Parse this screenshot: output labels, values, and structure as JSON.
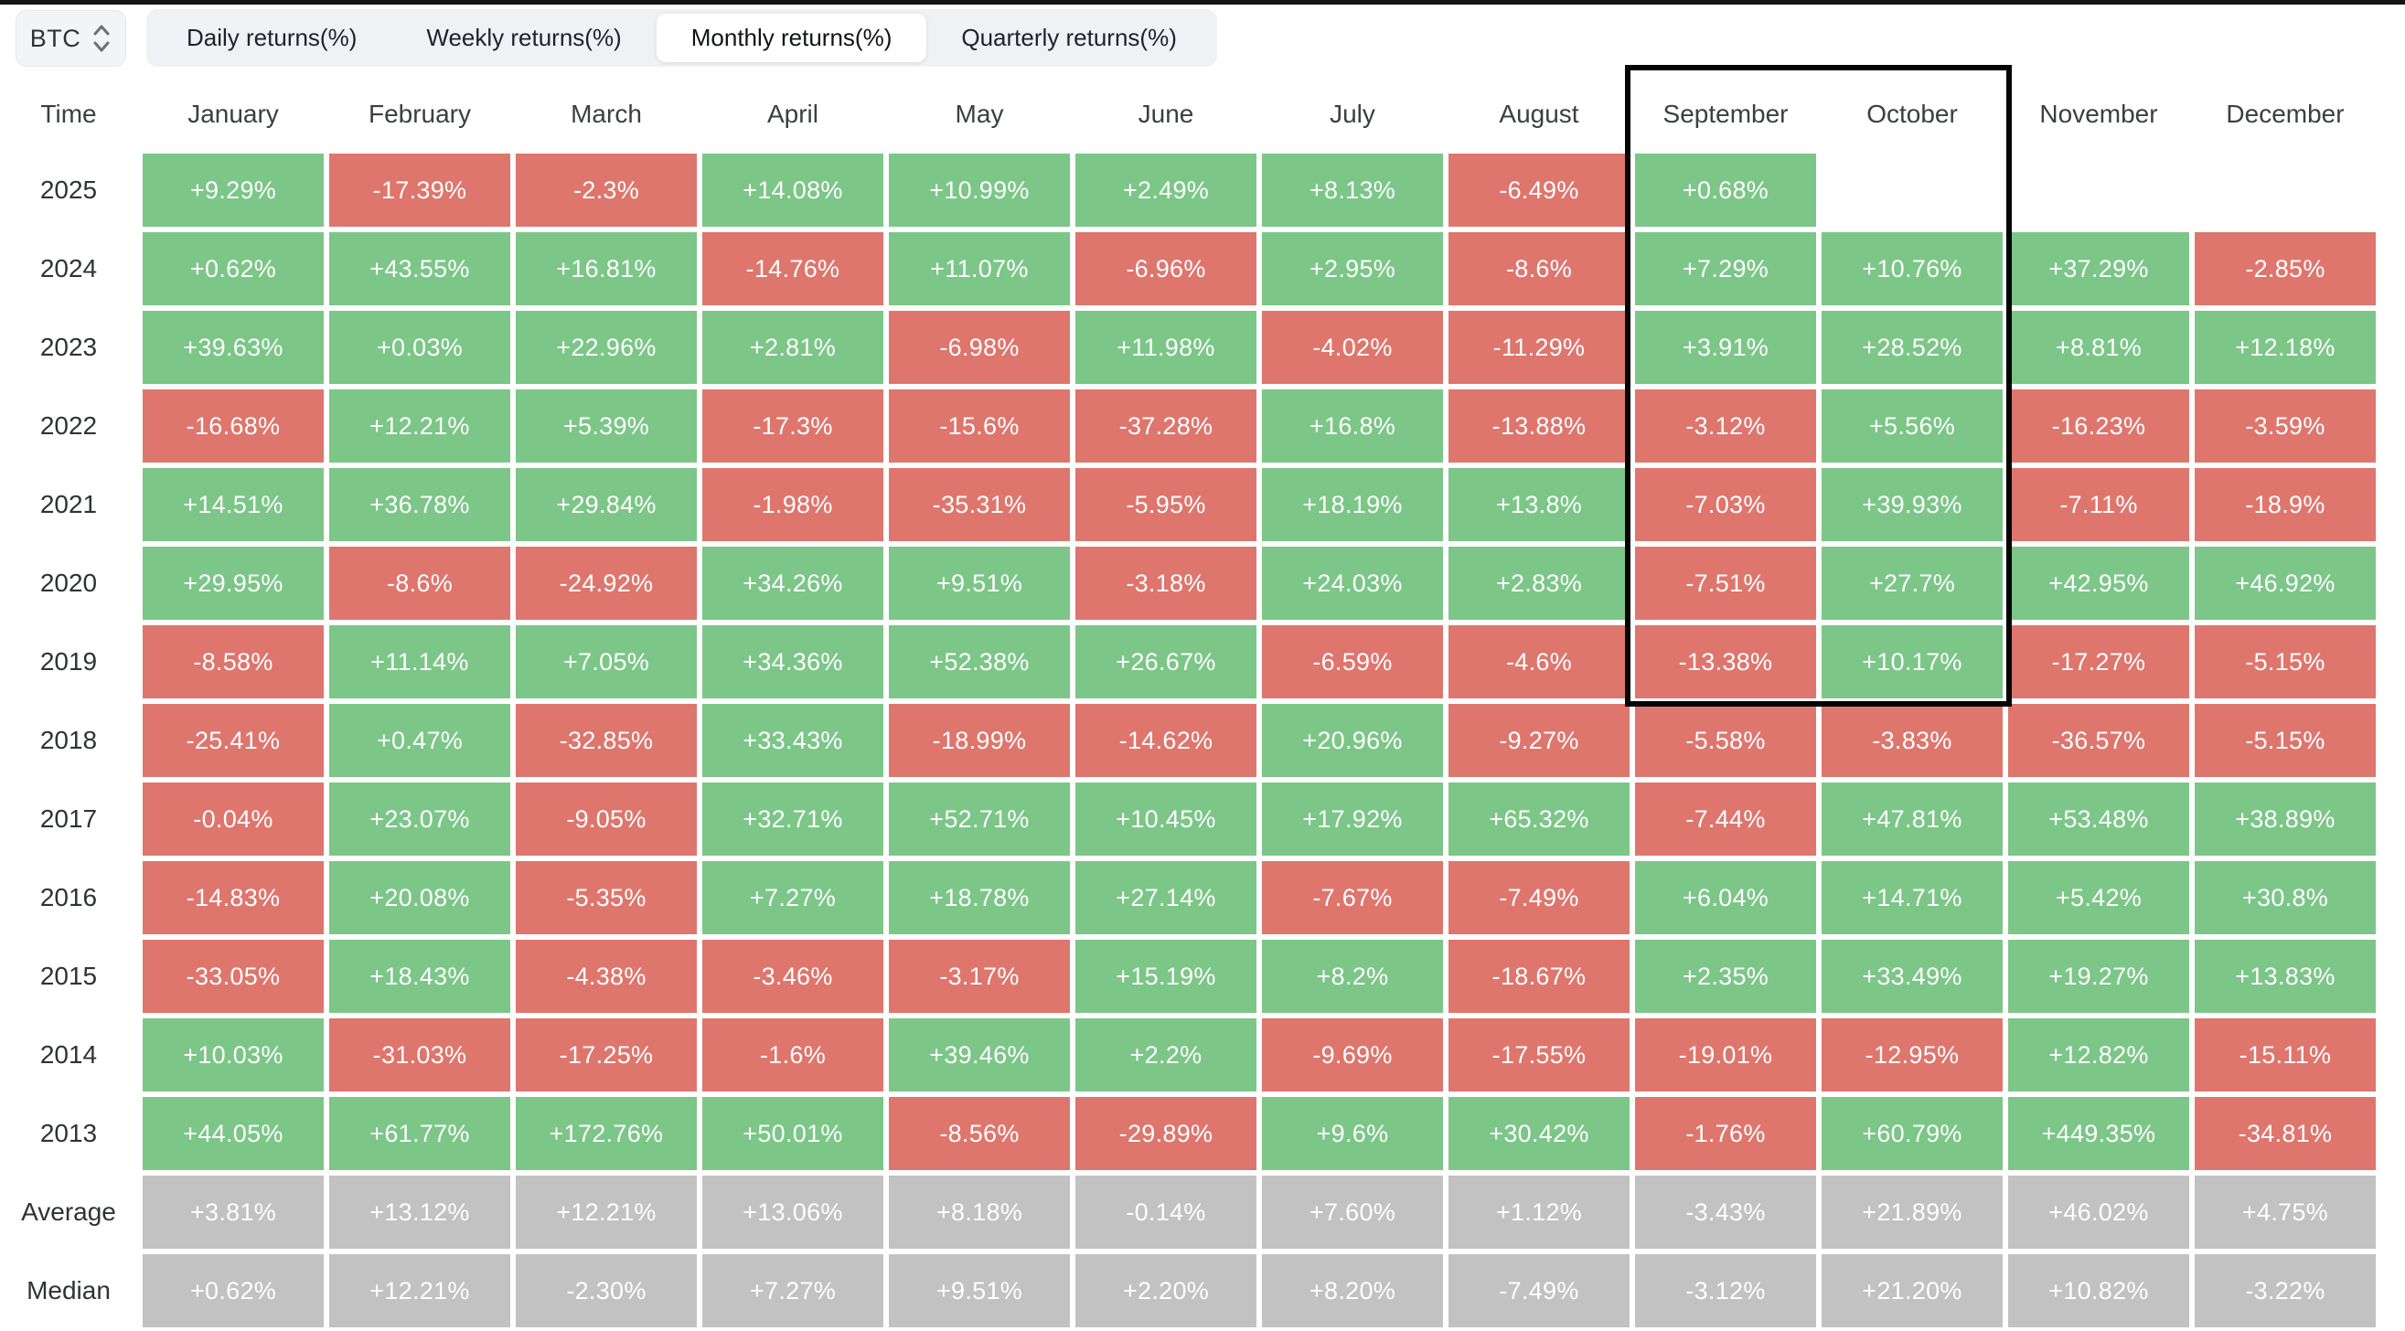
{
  "topbar": {
    "symbol": "BTC"
  },
  "tabs": [
    {
      "label": "Daily returns(%)",
      "active": false
    },
    {
      "label": "Weekly returns(%)",
      "active": false
    },
    {
      "label": "Monthly returns(%)",
      "active": true
    },
    {
      "label": "Quarterly returns(%)",
      "active": false
    }
  ],
  "table": {
    "columns": [
      "Time",
      "January",
      "February",
      "March",
      "April",
      "May",
      "June",
      "July",
      "August",
      "September",
      "October",
      "November",
      "December"
    ],
    "rows": [
      {
        "label": "2025",
        "kind": "year",
        "values": [
          "+9.29%",
          "-17.39%",
          "-2.3%",
          "+14.08%",
          "+10.99%",
          "+2.49%",
          "+8.13%",
          "-6.49%",
          "+0.68%",
          "",
          "",
          ""
        ]
      },
      {
        "label": "2024",
        "kind": "year",
        "values": [
          "+0.62%",
          "+43.55%",
          "+16.81%",
          "-14.76%",
          "+11.07%",
          "-6.96%",
          "+2.95%",
          "-8.6%",
          "+7.29%",
          "+10.76%",
          "+37.29%",
          "-2.85%"
        ]
      },
      {
        "label": "2023",
        "kind": "year",
        "values": [
          "+39.63%",
          "+0.03%",
          "+22.96%",
          "+2.81%",
          "-6.98%",
          "+11.98%",
          "-4.02%",
          "-11.29%",
          "+3.91%",
          "+28.52%",
          "+8.81%",
          "+12.18%"
        ]
      },
      {
        "label": "2022",
        "kind": "year",
        "values": [
          "-16.68%",
          "+12.21%",
          "+5.39%",
          "-17.3%",
          "-15.6%",
          "-37.28%",
          "+16.8%",
          "-13.88%",
          "-3.12%",
          "+5.56%",
          "-16.23%",
          "-3.59%"
        ]
      },
      {
        "label": "2021",
        "kind": "year",
        "values": [
          "+14.51%",
          "+36.78%",
          "+29.84%",
          "-1.98%",
          "-35.31%",
          "-5.95%",
          "+18.19%",
          "+13.8%",
          "-7.03%",
          "+39.93%",
          "-7.11%",
          "-18.9%"
        ]
      },
      {
        "label": "2020",
        "kind": "year",
        "values": [
          "+29.95%",
          "-8.6%",
          "-24.92%",
          "+34.26%",
          "+9.51%",
          "-3.18%",
          "+24.03%",
          "+2.83%",
          "-7.51%",
          "+27.7%",
          "+42.95%",
          "+46.92%"
        ]
      },
      {
        "label": "2019",
        "kind": "year",
        "values": [
          "-8.58%",
          "+11.14%",
          "+7.05%",
          "+34.36%",
          "+52.38%",
          "+26.67%",
          "-6.59%",
          "-4.6%",
          "-13.38%",
          "+10.17%",
          "-17.27%",
          "-5.15%"
        ]
      },
      {
        "label": "2018",
        "kind": "year",
        "values": [
          "-25.41%",
          "+0.47%",
          "-32.85%",
          "+33.43%",
          "-18.99%",
          "-14.62%",
          "+20.96%",
          "-9.27%",
          "-5.58%",
          "-3.83%",
          "-36.57%",
          "-5.15%"
        ]
      },
      {
        "label": "2017",
        "kind": "year",
        "values": [
          "-0.04%",
          "+23.07%",
          "-9.05%",
          "+32.71%",
          "+52.71%",
          "+10.45%",
          "+17.92%",
          "+65.32%",
          "-7.44%",
          "+47.81%",
          "+53.48%",
          "+38.89%"
        ]
      },
      {
        "label": "2016",
        "kind": "year",
        "values": [
          "-14.83%",
          "+20.08%",
          "-5.35%",
          "+7.27%",
          "+18.78%",
          "+27.14%",
          "-7.67%",
          "-7.49%",
          "+6.04%",
          "+14.71%",
          "+5.42%",
          "+30.8%"
        ]
      },
      {
        "label": "2015",
        "kind": "year",
        "values": [
          "-33.05%",
          "+18.43%",
          "-4.38%",
          "-3.46%",
          "-3.17%",
          "+15.19%",
          "+8.2%",
          "-18.67%",
          "+2.35%",
          "+33.49%",
          "+19.27%",
          "+13.83%"
        ]
      },
      {
        "label": "2014",
        "kind": "year",
        "values": [
          "+10.03%",
          "-31.03%",
          "-17.25%",
          "-1.6%",
          "+39.46%",
          "+2.2%",
          "-9.69%",
          "-17.55%",
          "-19.01%",
          "-12.95%",
          "+12.82%",
          "-15.11%"
        ]
      },
      {
        "label": "2013",
        "kind": "year",
        "values": [
          "+44.05%",
          "+61.77%",
          "+172.76%",
          "+50.01%",
          "-8.56%",
          "-29.89%",
          "+9.6%",
          "+30.42%",
          "-1.76%",
          "+60.79%",
          "+449.35%",
          "-34.81%"
        ]
      },
      {
        "label": "Average",
        "kind": "summary",
        "values": [
          "+3.81%",
          "+13.12%",
          "+12.21%",
          "+13.06%",
          "+8.18%",
          "-0.14%",
          "+7.60%",
          "+1.12%",
          "-3.43%",
          "+21.89%",
          "+46.02%",
          "+4.75%"
        ]
      },
      {
        "label": "Median",
        "kind": "summary",
        "values": [
          "+0.62%",
          "+12.21%",
          "-2.30%",
          "+7.27%",
          "+9.51%",
          "+2.20%",
          "+8.20%",
          "-7.49%",
          "-3.12%",
          "+21.20%",
          "+10.82%",
          "-3.22%"
        ]
      }
    ]
  },
  "highlight": {
    "columns": [
      "September",
      "October"
    ]
  },
  "colors": {
    "positive": "#7cc688",
    "negative": "#de766d",
    "summary": "#c2c2c3",
    "cell_text": "#ffffff",
    "top_strip": "#151515",
    "highlight_border": "#050505"
  }
}
